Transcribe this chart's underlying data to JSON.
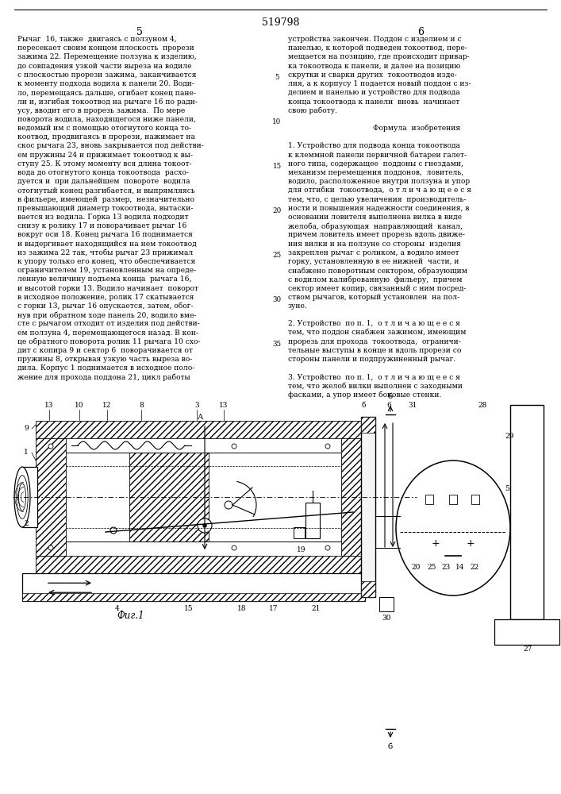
{
  "patent_number": "519798",
  "page_left": "5",
  "page_right": "6",
  "left_col_lines": [
    "Рычаг  16, также  двигаясь с ползуном 4,",
    "пересекает своим концом плоскость  прорези",
    "зажима 22. Перемещение ползуна к изделию,",
    "до совпадения узкой части выреза на водиле",
    "с плоскостью прорези зажима, заканчивается",
    "к моменту подхода водила к панели 20. Води-",
    "ло, перемещаясь дальше, огибает конец пане-",
    "ли и, изгибая токоотвод на рычаге 16 по ради-",
    "усу, вводит его в прорезь зажима.  По мере",
    "поворота водила, находящегося ниже панели,",
    "ведомый им с помощью отогнутого конца то-",
    "коотвод, продвигаясь в прорези, нажимает на",
    "скос рычага 23, вновь закрывается под действи-",
    "ем пружины 24 и прижимает токоотвод к вы-",
    "ступу 25. К этому моменту вся длина токоот-",
    "вода до отогнутого конца токоотвода  расхо-",
    "дуется и  при дальнейшем  повороте  водила",
    "отогнутый конец разгибается, и выпрямляясь",
    "в фильере, имеющей  размер,  незначительно",
    "превышающий диаметр токоотвода, вытаски-",
    "вается из водила. Горка 13 водила подходит",
    "снизу к ролику 17 и поворачивает рычаг 16",
    "вокруг оси 18. Конец рычага 16 поднимается",
    "и выдергивает находящийся на нем токоотвод",
    "из зажима 22 так, чтобы рычаг 23 прижимал",
    "к упору только его конец, что обеспечивается",
    "ограничителем 19, установленным на опреде-",
    "ленную величину подъема конца  рычага 16,",
    "и высотой горки 13. Водило начинает  поворот",
    "в исходное положение, ролик 17 скатывается",
    "с горки 13, рычаг 16 опускается, затем, обог-",
    "нув при обратном ходе панель 20, водило вме-",
    "сте с рычагом отходит от изделия под действи-",
    "ем ползуна 4, перемещающегося назад. В кон-",
    "це обратного поворота ролик 11 рычага 10 схо-",
    "дит с копира 9 и сектор 6  поворачивается от",
    "пружины 8, открывая узкую часть выреза во-",
    "дила. Корпус 1 поднимается в исходное поло-",
    "жение для прохода поддона 21, цикл работы"
  ],
  "right_col_lines": [
    "устройства закончен. Поддон с изделием и с",
    "панелью, к которой подведен токоотвод, пере-",
    "мещается на позицию, где происходит привар-",
    "ка токоотвода к панели, и далее на позицию",
    "скрутки и сварки других  токоотводов изде-",
    "лия, а к корпусу 1 подается новый поддон с из-",
    "делием и панелью и устройство для подвода",
    "конца токоотвода к панели  вновь  начинает",
    "свою работу.",
    "",
    "Формула  изобретения",
    "",
    "1. Устройство для подвода конца токоотвода",
    "к клеммной панели первичной батареи галет-",
    "ного типа, содержащее  поддоны с гнездами,",
    "механизм перемещения поддонов,  ловитель,",
    "водило, расположенное внутри ползуна и упор",
    "для отгибки  токоотвода,  о т л и ч а ю щ е е с я",
    "тем, что, с целью увеличения  производитель-",
    "ности и повышения надежности соединения, в",
    "основании ловителя выполнена вилка в виде",
    "желоба, образующая  направляющий  канал,",
    "причем ловитель имеет прорезь вдоль движе-",
    "ния вилки и на ползуне со стороны  изделия",
    "закреплен рычаг с роликом, а водило имеет",
    "горку, установленную в ее нижней  части, и",
    "снабжено поворотным сектором, образующим",
    "с водилом калиброванную  фильеру,  причем",
    "сектор имеет копир, связанный с ним посред-",
    "ством рычагов, который установлен  на пол-",
    "зуне.",
    "",
    "2. Устройство  по п. 1,  о т л и ч а ю щ е е с я",
    "тем, что поддон снабжен зажимом, имеющим",
    "прорезь для прохода  токоотвода,  ограничи-",
    "тельные выступы в конце и вдоль прорези со",
    "стороны панели и подпружиненный рычаг.",
    "",
    "3. Устройство  по п. 1,  о т л и ч а ю щ е е с я",
    "тем, что желоб вилки выполнен с заходными",
    "фасками, а упор имеет боковые стенки."
  ],
  "line_numbers": [
    [
      4,
      5
    ],
    [
      9,
      10
    ],
    [
      14,
      15
    ],
    [
      19,
      20
    ],
    [
      24,
      25
    ],
    [
      29,
      30
    ],
    [
      34,
      35
    ]
  ],
  "fig_label": "Фиг.1",
  "bg_color": "#ffffff",
  "text_color": "#000000",
  "line_color": "#000000"
}
